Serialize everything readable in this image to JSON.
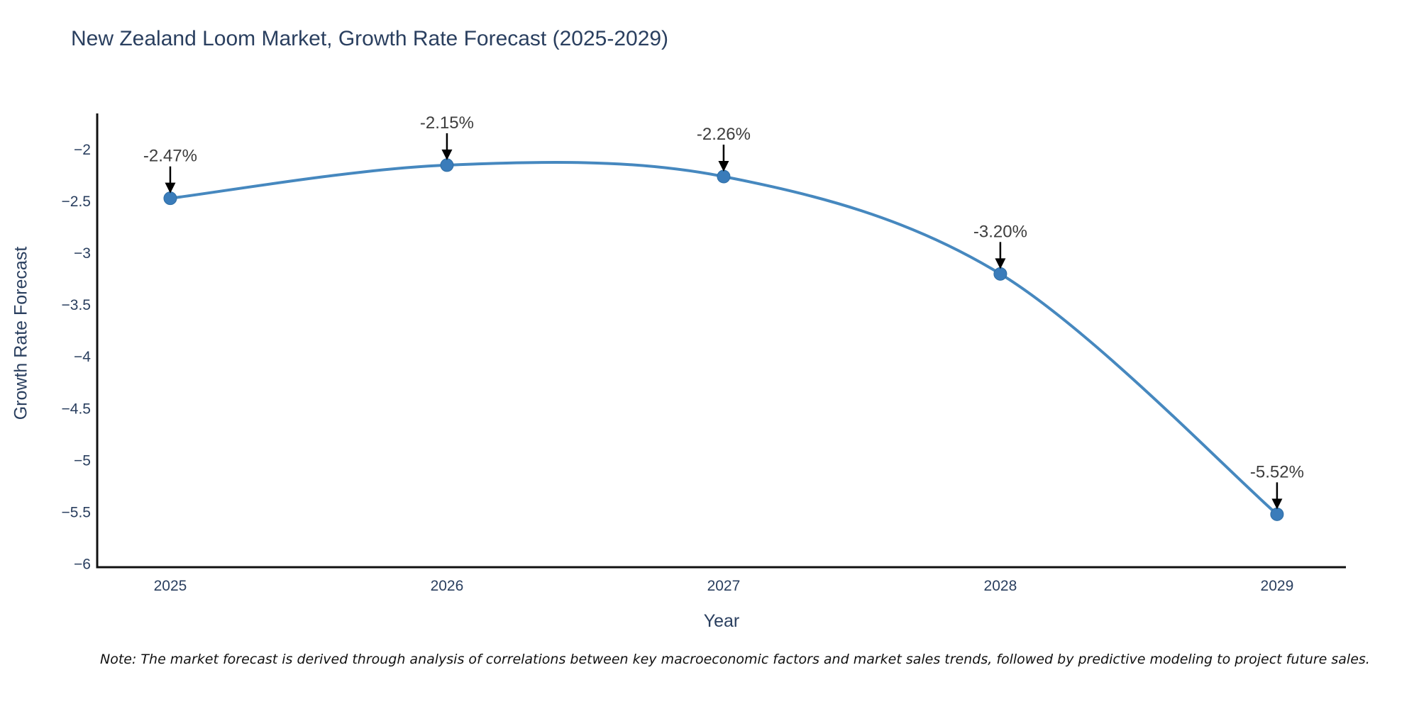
{
  "title": "New Zealand Loom Market, Growth Rate Forecast (2025-2029)",
  "note": "Note: The market forecast is derived through analysis of correlations between key macroeconomic factors and market sales trends, followed by predictive modeling to project future sales.",
  "colors": {
    "title_text": "#2a3f5f",
    "tick_text": "#2a3f5f",
    "annotation_text": "#3d3d3d",
    "line": "#4688bf",
    "marker_fill": "#3a7cba",
    "marker_stroke": "#2e6da4",
    "arrow": "#000000",
    "axis_line": "#111111",
    "background": "#ffffff"
  },
  "chart_data": {
    "type": "line",
    "title": "New Zealand Loom Market, Growth Rate Forecast (2025-2029)",
    "xlabel": "Year",
    "ylabel": "Growth Rate Forecast",
    "x": [
      2025,
      2026,
      2027,
      2028,
      2029
    ],
    "series": [
      {
        "name": "Growth Rate Forecast",
        "values": [
          -2.47,
          -2.15,
          -2.26,
          -3.2,
          -5.52
        ]
      }
    ],
    "point_labels": [
      "-2.47%",
      "-2.15%",
      "-2.26%",
      "-3.20%",
      "-5.52%"
    ],
    "xtick_labels": [
      "2025",
      "2026",
      "2027",
      "2028",
      "2029"
    ],
    "yticks": [
      -2,
      -2.5,
      -3,
      -3.5,
      -4,
      -4.5,
      -5,
      -5.5,
      -6
    ],
    "ytick_labels": [
      "−2",
      "−2.5",
      "−3",
      "−3.5",
      "−4",
      "−4.5",
      "−5",
      "−5.5",
      "−6"
    ],
    "xlim": [
      2024.736,
      2029.249
    ],
    "ylim": [
      -6.031,
      -1.651
    ],
    "grid": false,
    "legend": "none",
    "line_shape": "spline",
    "marker_size": 9
  }
}
